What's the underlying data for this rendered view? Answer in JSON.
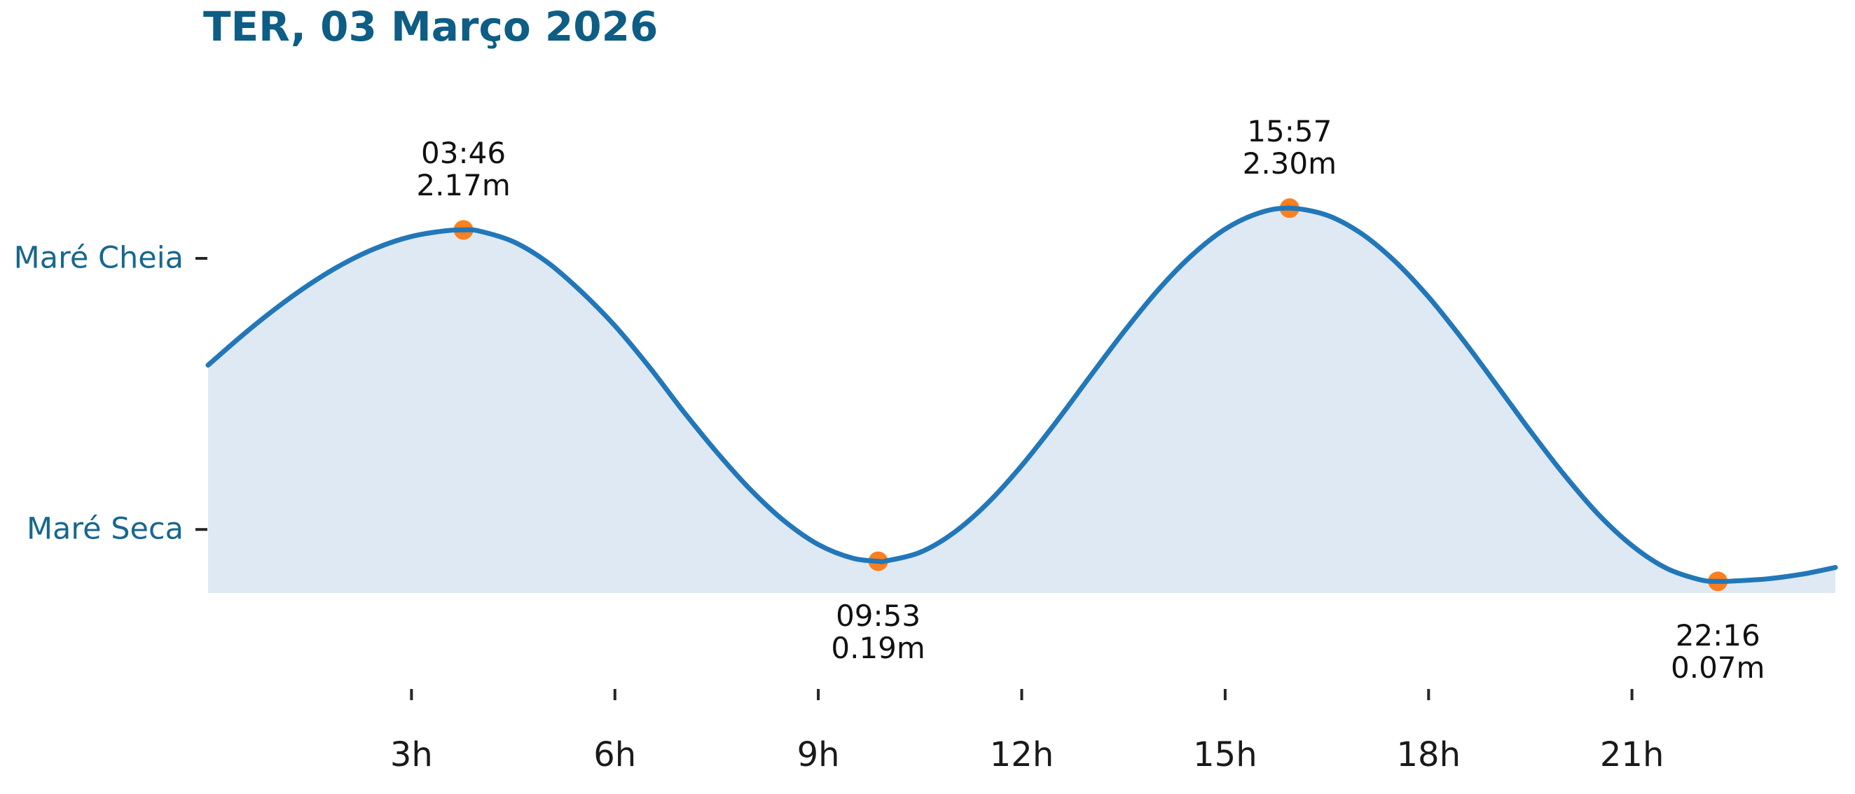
{
  "chart": {
    "title": "TER, 03 Março 2026"
  },
  "chart_data": {
    "type": "area",
    "title": "TER, 03 Março 2026",
    "x_unit": "hours",
    "x_range": [
      0,
      24
    ],
    "y_unit": "m",
    "y_range": [
      0,
      2.62
    ],
    "grid": false,
    "legend": "none",
    "x_ticks": [
      {
        "t": 3,
        "label": "3h"
      },
      {
        "t": 6,
        "label": "6h"
      },
      {
        "t": 9,
        "label": "9h"
      },
      {
        "t": 12,
        "label": "12h"
      },
      {
        "t": 15,
        "label": "15h"
      },
      {
        "t": 18,
        "label": "18h"
      },
      {
        "t": 21,
        "label": "21h"
      }
    ],
    "y_ticks": [
      {
        "value": 2.0,
        "label": "Maré Cheia"
      },
      {
        "value": 0.38,
        "label": "Maré Seca"
      }
    ],
    "events": [
      {
        "type": "high",
        "time": "03:46",
        "t": 3.7667,
        "height_m": 2.17,
        "height_label": "2.17m"
      },
      {
        "type": "low",
        "time": "09:53",
        "t": 9.8833,
        "height_m": 0.19,
        "height_label": "0.19m"
      },
      {
        "type": "high",
        "time": "15:57",
        "t": 15.95,
        "height_m": 2.3,
        "height_label": "2.30m"
      },
      {
        "type": "low",
        "time": "22:16",
        "t": 22.2667,
        "height_m": 0.07,
        "height_label": "0.07m"
      }
    ],
    "curve_points": [
      [
        0,
        1.362
      ],
      [
        0.5,
        1.538
      ],
      [
        1,
        1.701
      ],
      [
        1.5,
        1.846
      ],
      [
        2,
        1.969
      ],
      [
        2.5,
        2.065
      ],
      [
        3,
        2.131
      ],
      [
        3.5,
        2.165
      ],
      [
        3.7667,
        2.17
      ],
      [
        4,
        2.163
      ],
      [
        4.5,
        2.1
      ],
      [
        5,
        1.978
      ],
      [
        5.5,
        1.803
      ],
      [
        6,
        1.597
      ],
      [
        6.5,
        1.355
      ],
      [
        7,
        1.091
      ],
      [
        7.5,
        0.843
      ],
      [
        8,
        0.618
      ],
      [
        8.5,
        0.43
      ],
      [
        9,
        0.29
      ],
      [
        9.5,
        0.209
      ],
      [
        9.8833,
        0.19
      ],
      [
        10,
        0.192
      ],
      [
        10.5,
        0.243
      ],
      [
        11,
        0.361
      ],
      [
        11.5,
        0.538
      ],
      [
        12,
        0.762
      ],
      [
        12.5,
        1.018
      ],
      [
        13,
        1.29
      ],
      [
        13.5,
        1.558
      ],
      [
        14,
        1.806
      ],
      [
        14.5,
        2.015
      ],
      [
        15,
        2.175
      ],
      [
        15.5,
        2.271
      ],
      [
        15.95,
        2.3
      ],
      [
        16.5,
        2.258
      ],
      [
        17,
        2.151
      ],
      [
        17.5,
        1.984
      ],
      [
        18,
        1.769
      ],
      [
        18.5,
        1.517
      ],
      [
        19,
        1.245
      ],
      [
        19.5,
        0.969
      ],
      [
        20,
        0.707
      ],
      [
        20.5,
        0.472
      ],
      [
        21,
        0.284
      ],
      [
        21.5,
        0.15
      ],
      [
        22,
        0.08
      ],
      [
        22.2667,
        0.07
      ],
      [
        22.5,
        0.072
      ],
      [
        23,
        0.085
      ],
      [
        23.5,
        0.112
      ],
      [
        24,
        0.153
      ]
    ],
    "colors": {
      "line": "#2277b9",
      "fill": "#dfe9f4",
      "marker": "#fd7f1e",
      "title": "#0d5d85",
      "axis_label": "#17678f",
      "tick": "#262626",
      "annotation": "#111111"
    }
  }
}
